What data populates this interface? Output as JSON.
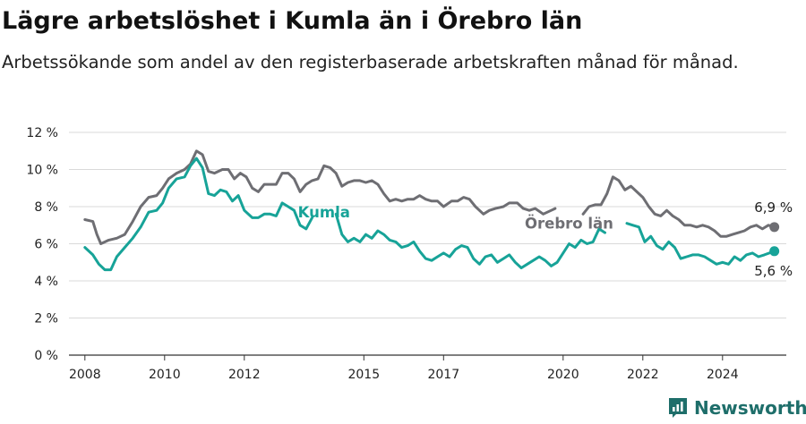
{
  "title": "Lägre arbetslöshet i Kumla än i Örebro län",
  "subtitle": "Arbetssökande som andel av den registerbaserade arbetskraften månad för månad.",
  "brand": {
    "name": "Newsworthy",
    "color": "#1e6e6a",
    "icon": "bar-chart-logo-icon"
  },
  "colors": {
    "kumla": "#17a398",
    "orebro": "#6e6e73",
    "grid": "#d9d9d9",
    "axis": "#333333"
  },
  "chart_data": {
    "type": "line",
    "title": "Lägre arbetslöshet i Kumla än i Örebro län",
    "subtitle": "Arbetssökande som andel av den registerbaserade arbetskraften månad för månad.",
    "xlabel": "",
    "ylabel": "",
    "x_ticks": [
      "2008",
      "2010",
      "2012",
      "2015",
      "2017",
      "2020",
      "2022",
      "2024"
    ],
    "x_tick_values": [
      2008,
      2010,
      2012,
      2015,
      2017,
      2020,
      2022,
      2024
    ],
    "y_ticks": [
      "0 %",
      "2 %",
      "4 %",
      "6 %",
      "8 %",
      "10 %",
      "12 %"
    ],
    "y_tick_values": [
      0,
      2,
      4,
      6,
      8,
      10,
      12
    ],
    "xlim": [
      2007.6,
      2025.6
    ],
    "ylim": [
      0,
      12
    ],
    "grid": "horizontal",
    "series": [
      {
        "name": "Örebro län",
        "key": "orebro",
        "end_label": "6,9 %",
        "points": [
          [
            2008.0,
            7.3
          ],
          [
            2008.2,
            7.2
          ],
          [
            2008.3,
            6.5
          ],
          [
            2008.4,
            6.0
          ],
          [
            2008.6,
            6.2
          ],
          [
            2008.8,
            6.3
          ],
          [
            2009.0,
            6.5
          ],
          [
            2009.2,
            7.2
          ],
          [
            2009.4,
            8.0
          ],
          [
            2009.6,
            8.5
          ],
          [
            2009.8,
            8.6
          ],
          [
            2009.95,
            9.0
          ],
          [
            2010.1,
            9.5
          ],
          [
            2010.3,
            9.8
          ],
          [
            2010.5,
            10.0
          ],
          [
            2010.65,
            10.3
          ],
          [
            2010.8,
            11.0
          ],
          [
            2010.95,
            10.8
          ],
          [
            2011.1,
            9.9
          ],
          [
            2011.25,
            9.8
          ],
          [
            2011.45,
            10.0
          ],
          [
            2011.6,
            10.0
          ],
          [
            2011.75,
            9.5
          ],
          [
            2011.9,
            9.8
          ],
          [
            2012.05,
            9.6
          ],
          [
            2012.2,
            9.0
          ],
          [
            2012.35,
            8.8
          ],
          [
            2012.5,
            9.2
          ],
          [
            2012.65,
            9.2
          ],
          [
            2012.8,
            9.2
          ],
          [
            2012.95,
            9.8
          ],
          [
            2013.1,
            9.8
          ],
          [
            2013.25,
            9.5
          ],
          [
            2013.4,
            8.8
          ],
          [
            2013.55,
            9.2
          ],
          [
            2013.7,
            9.4
          ],
          [
            2013.85,
            9.5
          ],
          [
            2014.0,
            10.2
          ],
          [
            2014.15,
            10.1
          ],
          [
            2014.3,
            9.8
          ],
          [
            2014.45,
            9.1
          ],
          [
            2014.6,
            9.3
          ],
          [
            2014.75,
            9.4
          ],
          [
            2014.9,
            9.4
          ],
          [
            2015.05,
            9.3
          ],
          [
            2015.2,
            9.4
          ],
          [
            2015.35,
            9.2
          ],
          [
            2015.5,
            8.7
          ],
          [
            2015.65,
            8.3
          ],
          [
            2015.8,
            8.4
          ],
          [
            2015.95,
            8.3
          ],
          [
            2016.1,
            8.4
          ],
          [
            2016.25,
            8.4
          ],
          [
            2016.4,
            8.6
          ],
          [
            2016.55,
            8.4
          ],
          [
            2016.7,
            8.3
          ],
          [
            2016.85,
            8.3
          ],
          [
            2017.0,
            8.0
          ],
          [
            2017.2,
            8.3
          ],
          [
            2017.35,
            8.3
          ],
          [
            2017.5,
            8.5
          ],
          [
            2017.65,
            8.4
          ],
          [
            2017.8,
            8.0
          ],
          [
            2018.0,
            7.6
          ],
          [
            2018.15,
            7.8
          ],
          [
            2018.3,
            7.9
          ],
          [
            2018.5,
            8.0
          ],
          [
            2018.65,
            8.2
          ],
          [
            2018.85,
            8.2
          ],
          [
            2019.0,
            7.9
          ],
          [
            2019.15,
            7.8
          ],
          [
            2019.3,
            7.9
          ],
          [
            2019.5,
            7.6
          ],
          [
            2019.7,
            7.8
          ],
          [
            2019.8,
            7.9
          ],
          [
            2020.5,
            7.6
          ],
          [
            2020.65,
            8.0
          ],
          [
            2020.8,
            8.1
          ],
          [
            2020.95,
            8.1
          ],
          [
            2021.1,
            8.7
          ],
          [
            2021.25,
            9.6
          ],
          [
            2021.4,
            9.4
          ],
          [
            2021.55,
            8.9
          ],
          [
            2021.7,
            9.1
          ],
          [
            2021.85,
            8.8
          ],
          [
            2022.0,
            8.5
          ],
          [
            2022.15,
            8.0
          ],
          [
            2022.3,
            7.6
          ],
          [
            2022.45,
            7.5
          ],
          [
            2022.6,
            7.8
          ],
          [
            2022.75,
            7.5
          ],
          [
            2022.9,
            7.3
          ],
          [
            2023.05,
            7.0
          ],
          [
            2023.2,
            7.0
          ],
          [
            2023.35,
            6.9
          ],
          [
            2023.5,
            7.0
          ],
          [
            2023.65,
            6.9
          ],
          [
            2023.8,
            6.7
          ],
          [
            2023.95,
            6.4
          ],
          [
            2024.1,
            6.4
          ],
          [
            2024.25,
            6.5
          ],
          [
            2024.4,
            6.6
          ],
          [
            2024.55,
            6.7
          ],
          [
            2024.7,
            6.9
          ],
          [
            2024.85,
            7.0
          ],
          [
            2025.0,
            6.8
          ],
          [
            2025.15,
            7.0
          ],
          [
            2025.3,
            6.9
          ]
        ]
      },
      {
        "name": "Kumla",
        "key": "kumla",
        "end_label": "5,6 %",
        "points": [
          [
            2008.0,
            5.8
          ],
          [
            2008.2,
            5.4
          ],
          [
            2008.35,
            4.9
          ],
          [
            2008.5,
            4.6
          ],
          [
            2008.65,
            4.6
          ],
          [
            2008.8,
            5.3
          ],
          [
            2009.0,
            5.8
          ],
          [
            2009.2,
            6.3
          ],
          [
            2009.4,
            6.9
          ],
          [
            2009.6,
            7.7
          ],
          [
            2009.8,
            7.8
          ],
          [
            2009.95,
            8.2
          ],
          [
            2010.1,
            9.0
          ],
          [
            2010.3,
            9.5
          ],
          [
            2010.5,
            9.6
          ],
          [
            2010.65,
            10.2
          ],
          [
            2010.8,
            10.6
          ],
          [
            2010.95,
            10.1
          ],
          [
            2011.1,
            8.7
          ],
          [
            2011.25,
            8.6
          ],
          [
            2011.4,
            8.9
          ],
          [
            2011.55,
            8.8
          ],
          [
            2011.7,
            8.3
          ],
          [
            2011.85,
            8.6
          ],
          [
            2012.0,
            7.8
          ],
          [
            2012.2,
            7.4
          ],
          [
            2012.35,
            7.4
          ],
          [
            2012.5,
            7.6
          ],
          [
            2012.65,
            7.6
          ],
          [
            2012.8,
            7.5
          ],
          [
            2012.95,
            8.2
          ],
          [
            2013.1,
            8.0
          ],
          [
            2013.25,
            7.8
          ],
          [
            2013.4,
            7.0
          ],
          [
            2013.55,
            6.8
          ],
          [
            2013.7,
            7.4
          ],
          [
            2014.3,
            7.6
          ],
          [
            2014.45,
            6.5
          ],
          [
            2014.6,
            6.1
          ],
          [
            2014.75,
            6.3
          ],
          [
            2014.9,
            6.1
          ],
          [
            2015.05,
            6.5
          ],
          [
            2015.2,
            6.3
          ],
          [
            2015.35,
            6.7
          ],
          [
            2015.5,
            6.5
          ],
          [
            2015.65,
            6.2
          ],
          [
            2015.8,
            6.1
          ],
          [
            2015.95,
            5.8
          ],
          [
            2016.1,
            5.9
          ],
          [
            2016.25,
            6.1
          ],
          [
            2016.4,
            5.6
          ],
          [
            2016.55,
            5.2
          ],
          [
            2016.7,
            5.1
          ],
          [
            2016.85,
            5.3
          ],
          [
            2017.0,
            5.5
          ],
          [
            2017.15,
            5.3
          ],
          [
            2017.3,
            5.7
          ],
          [
            2017.45,
            5.9
          ],
          [
            2017.6,
            5.8
          ],
          [
            2017.75,
            5.2
          ],
          [
            2017.9,
            4.9
          ],
          [
            2018.05,
            5.3
          ],
          [
            2018.2,
            5.4
          ],
          [
            2018.35,
            5.0
          ],
          [
            2018.5,
            5.2
          ],
          [
            2018.65,
            5.4
          ],
          [
            2018.8,
            5.0
          ],
          [
            2018.95,
            4.7
          ],
          [
            2019.1,
            4.9
          ],
          [
            2019.25,
            5.1
          ],
          [
            2019.4,
            5.3
          ],
          [
            2019.55,
            5.1
          ],
          [
            2019.7,
            4.8
          ],
          [
            2019.85,
            5.0
          ],
          [
            2020.0,
            5.5
          ],
          [
            2020.15,
            6.0
          ],
          [
            2020.3,
            5.8
          ],
          [
            2020.45,
            6.2
          ],
          [
            2020.6,
            6.0
          ],
          [
            2020.75,
            6.1
          ],
          [
            2020.9,
            6.8
          ],
          [
            2021.05,
            6.6
          ],
          [
            2021.6,
            7.1
          ],
          [
            2021.75,
            7.0
          ],
          [
            2021.9,
            6.9
          ],
          [
            2022.05,
            6.1
          ],
          [
            2022.2,
            6.4
          ],
          [
            2022.35,
            5.9
          ],
          [
            2022.5,
            5.7
          ],
          [
            2022.65,
            6.1
          ],
          [
            2022.8,
            5.8
          ],
          [
            2022.95,
            5.2
          ],
          [
            2023.1,
            5.3
          ],
          [
            2023.25,
            5.4
          ],
          [
            2023.4,
            5.4
          ],
          [
            2023.55,
            5.3
          ],
          [
            2023.7,
            5.1
          ],
          [
            2023.85,
            4.9
          ],
          [
            2024.0,
            5.0
          ],
          [
            2024.15,
            4.9
          ],
          [
            2024.3,
            5.3
          ],
          [
            2024.45,
            5.1
          ],
          [
            2024.6,
            5.4
          ],
          [
            2024.75,
            5.5
          ],
          [
            2024.9,
            5.3
          ],
          [
            2025.05,
            5.4
          ],
          [
            2025.3,
            5.6
          ]
        ]
      }
    ],
    "annotations": [
      {
        "series": "kumla",
        "text": "Kumla",
        "x": 2014.0,
        "y": 7.7
      },
      {
        "series": "orebro",
        "text": "Örebro län",
        "x": 2020.15,
        "y": 7.1
      }
    ]
  }
}
